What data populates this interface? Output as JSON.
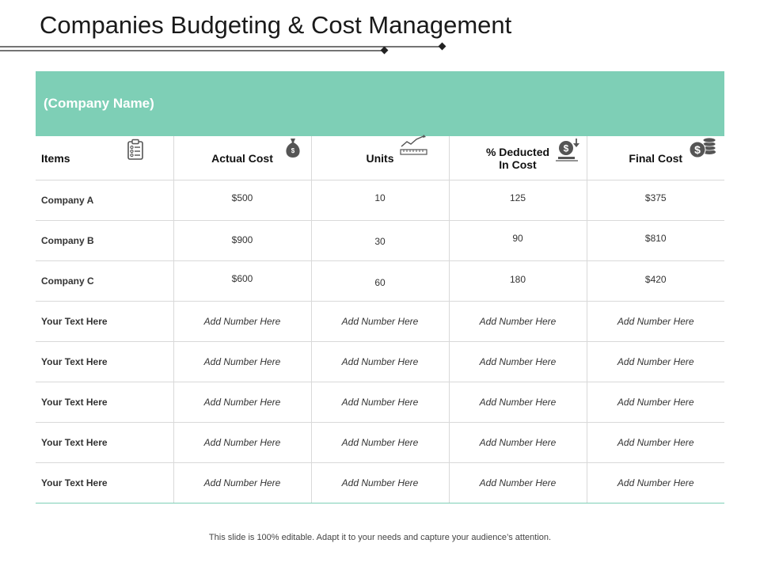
{
  "slide": {
    "title": "Companies Budgeting & Cost Management",
    "footer": "This slide is 100% editable. Adapt it to your needs and capture your audience’s attention."
  },
  "table": {
    "company_label": "(Company Name)",
    "headers": [
      {
        "label": "Items",
        "icon": "clipboard-checklist-icon"
      },
      {
        "label": "Actual Cost",
        "icon": "money-bag-icon"
      },
      {
        "label": "Units",
        "icon": "ruler-trend-icon"
      },
      {
        "label_line1": "% Deducted",
        "label_line2": "In Cost",
        "icon": "dollar-deduct-icon"
      },
      {
        "label": "Final Cost",
        "icon": "dollar-coins-icon"
      }
    ],
    "rows": [
      {
        "item": "Company A",
        "actual": "$500",
        "units": "10",
        "deducted": "125",
        "final": "$375"
      },
      {
        "item": "Company B",
        "actual": "$900",
        "units": "30",
        "deducted": "90",
        "final": "$810"
      },
      {
        "item": "Company C",
        "actual": "$600",
        "units": "60",
        "deducted": "180",
        "final": "$420"
      },
      {
        "item": "Your Text Here",
        "actual": "Add Number Here",
        "units": "Add Number Here",
        "deducted": "Add Number Here",
        "final": "Add Number Here"
      },
      {
        "item": "Your Text Here",
        "actual": "Add Number Here",
        "units": "Add Number Here",
        "deducted": "Add Number Here",
        "final": "Add Number Here"
      },
      {
        "item": "Your Text Here",
        "actual": "Add Number Here",
        "units": "Add Number Here",
        "deducted": "Add Number Here",
        "final": "Add Number Here"
      },
      {
        "item": "Your Text Here",
        "actual": "Add Number Here",
        "units": "Add Number Here",
        "deducted": "Add Number Here",
        "final": "Add Number Here"
      },
      {
        "item": "Your Text Here",
        "actual": "Add Number Here",
        "units": "Add Number Here",
        "deducted": "Add Number Here",
        "final": "Add Number Here"
      }
    ]
  },
  "colors": {
    "accent": "#7ecfb6",
    "icon": "#555555",
    "grid": "#d9d9d9"
  }
}
